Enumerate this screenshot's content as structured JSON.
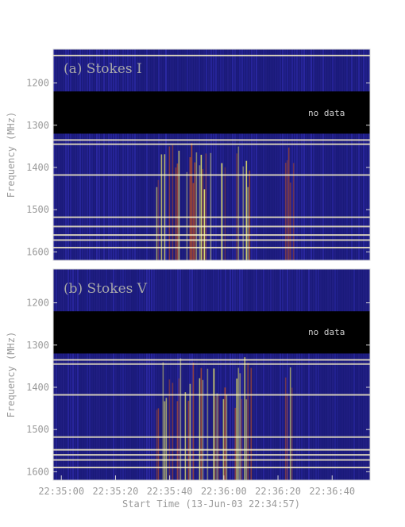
{
  "chart_data": [
    {
      "type": "heatmap",
      "title": "(a) Stokes I",
      "ylabel": "Frequency (MHz)",
      "yticks": [
        "1200",
        "1300",
        "1400",
        "1500",
        "1600"
      ],
      "ylim": [
        1120,
        1620
      ],
      "y_inverted": true,
      "no_data_band_mhz": [
        1220,
        1320
      ],
      "annotation": "no data",
      "bright_channels_mhz": [
        1135,
        1335,
        1345,
        1418,
        1518,
        1540,
        1560,
        1572,
        1590
      ],
      "burst_segments": [
        {
          "start": "22:35:35",
          "end": "22:35:52",
          "intensity": 0.85
        },
        {
          "start": "22:35:52",
          "end": "22:36:01",
          "intensity": 1.0
        },
        {
          "start": "22:36:04",
          "end": "22:36:10",
          "intensity": 0.75
        },
        {
          "start": "22:36:22",
          "end": "22:36:26",
          "intensity": 0.45
        }
      ]
    },
    {
      "type": "heatmap",
      "title": "(b) Stokes V",
      "ylabel": "Frequency (MHz)",
      "yticks": [
        "1200",
        "1300",
        "1400",
        "1500",
        "1600"
      ],
      "ylim": [
        1120,
        1620
      ],
      "y_inverted": true,
      "no_data_band_mhz": [
        1220,
        1320
      ],
      "annotation": "no data",
      "bright_channels_mhz": [
        1335,
        1345,
        1418,
        1518,
        1548,
        1560,
        1572,
        1590
      ],
      "burst_segments": [
        {
          "start": "22:35:35",
          "end": "22:35:52",
          "intensity": 0.8
        },
        {
          "start": "22:35:52",
          "end": "22:36:01",
          "intensity": 1.0
        },
        {
          "start": "22:36:04",
          "end": "22:36:10",
          "intensity": 0.7
        },
        {
          "start": "22:36:22",
          "end": "22:36:26",
          "intensity": 0.45
        }
      ]
    }
  ],
  "xaxis": {
    "label": "Start Time (13-Jun-03 22:34:57)",
    "ticks": [
      "22:35:00",
      "22:35:20",
      "22:35:40",
      "22:36:00",
      "22:36:20",
      "22:36:40"
    ],
    "start": "22:34:57",
    "end": "22:36:54"
  },
  "colors": {
    "background": "#1a1a7a",
    "hot": "#ffff66",
    "warm": "#c05020",
    "no_data": "#000000",
    "axis_text": "#9a9a9a"
  }
}
